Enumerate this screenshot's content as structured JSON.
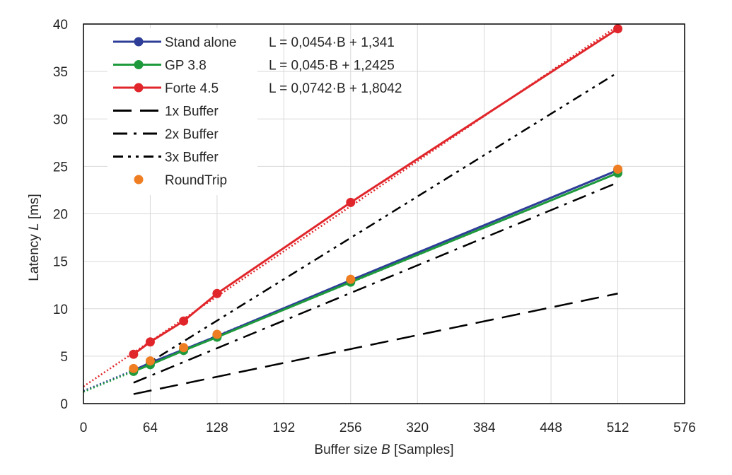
{
  "chart_data": {
    "type": "line",
    "title": "",
    "xlabel_pre": "Buffer size ",
    "xlabel_var": "B",
    "xlabel_post": " [Samples]",
    "ylabel_pre": "Latency ",
    "ylabel_var": "L",
    "ylabel_post": " [ms]",
    "xlim": [
      0,
      576
    ],
    "ylim": [
      0,
      40
    ],
    "x_ticks": [
      0,
      64,
      128,
      192,
      256,
      320,
      384,
      448,
      512,
      576
    ],
    "y_ticks": [
      0,
      5,
      10,
      15,
      20,
      25,
      30,
      35,
      40
    ],
    "grid": true,
    "legend_position": "top-left",
    "series": [
      {
        "name": "Stand alone",
        "color": "#2e3d98",
        "style": "solid-markers",
        "x": [
          48,
          64,
          96,
          128,
          256,
          512
        ],
        "y": [
          3.5,
          4.3,
          5.7,
          7.1,
          13.0,
          24.6
        ],
        "trendline": {
          "slope": 0.0454,
          "intercept": 1.341,
          "equation": "L = 0,0454·B + 1,341"
        }
      },
      {
        "name": "GP 3.8",
        "color": "#1e9a3c",
        "style": "solid-markers",
        "x": [
          48,
          64,
          96,
          128,
          256,
          512
        ],
        "y": [
          3.4,
          4.1,
          5.6,
          7.0,
          12.8,
          24.3
        ],
        "trendline": {
          "slope": 0.045,
          "intercept": 1.2425,
          "equation": "L = 0,045·B + 1,2425"
        }
      },
      {
        "name": "Forte 4.5",
        "color": "#e0262b",
        "style": "solid-markers",
        "x": [
          48,
          64,
          96,
          128,
          256,
          512
        ],
        "y": [
          5.2,
          6.5,
          8.7,
          11.6,
          21.2,
          39.5
        ],
        "trendline": {
          "slope": 0.0742,
          "intercept": 1.8042,
          "equation": "L = 0,0742·B + 1,8042"
        }
      },
      {
        "name": "1x Buffer",
        "color": "#000000",
        "style": "long-dash",
        "x": [
          48,
          512
        ],
        "y": [
          1.0,
          11.6
        ]
      },
      {
        "name": "2x Buffer",
        "color": "#000000",
        "style": "dash-dot",
        "x": [
          48,
          512
        ],
        "y": [
          2.2,
          23.3
        ]
      },
      {
        "name": "3x Buffer",
        "color": "#000000",
        "style": "dash-dot-dot",
        "x": [
          48,
          512
        ],
        "y": [
          3.3,
          34.9
        ]
      },
      {
        "name": "RoundTrip",
        "color": "#ef7d22",
        "style": "markers-only",
        "x": [
          48,
          64,
          96,
          128,
          256,
          512
        ],
        "y": [
          3.7,
          4.5,
          5.9,
          7.3,
          13.1,
          24.7
        ]
      }
    ]
  }
}
